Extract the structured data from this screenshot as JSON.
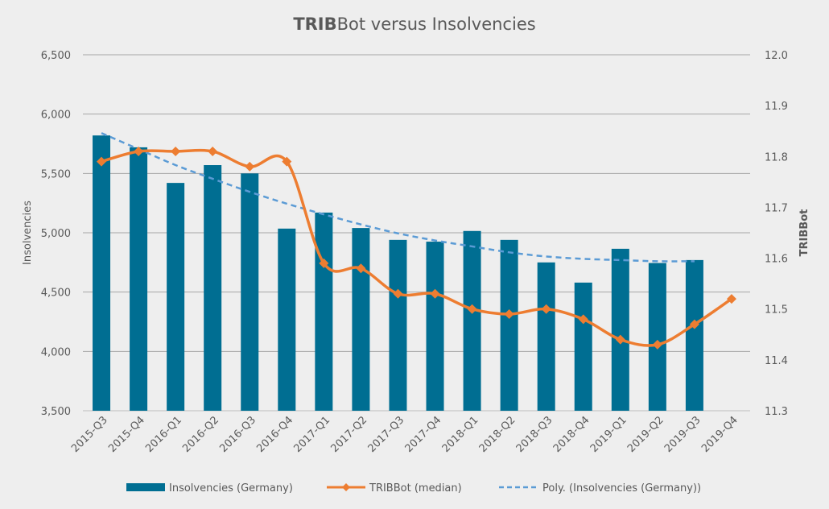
{
  "chart_data": {
    "type": "bar+line",
    "title_bold": "TRIB",
    "title_rest": "Bot versus Insolvencies",
    "ylabel": "Insolvencies",
    "y2label": "TRIBBot",
    "ylim": [
      3500,
      6500
    ],
    "yticks": [
      "3,500",
      "4,000",
      "4,500",
      "5,000",
      "5,500",
      "6,000",
      "6,500"
    ],
    "y2lim": [
      11.3,
      12.0
    ],
    "y2ticks": [
      "11.3",
      "11.4",
      "11.5",
      "11.6",
      "11.7",
      "11.8",
      "11.9",
      "12.0"
    ],
    "grid": true,
    "legend_position": "bottom",
    "categories": [
      "2015-Q3",
      "2015-Q4",
      "2016-Q1",
      "2016-Q2",
      "2016-Q3",
      "2016-Q4",
      "2017-Q1",
      "2017-Q2",
      "2017-Q3",
      "2017-Q4",
      "2018-Q1",
      "2018-Q2",
      "2018-Q3",
      "2018-Q4",
      "2019-Q1",
      "2019-Q2",
      "2019-Q3",
      "2019-Q4"
    ],
    "series": [
      {
        "name": "Insolvencies (Germany)",
        "type": "bar",
        "axis": "left",
        "color": "#006e92",
        "values": [
          5820,
          5720,
          5420,
          5570,
          5500,
          5035,
          5170,
          5040,
          4940,
          4925,
          5015,
          4940,
          4750,
          4580,
          4865,
          4745,
          4770,
          null
        ]
      },
      {
        "name": "TRIBBot (median)",
        "type": "line",
        "axis": "right",
        "color": "#ed7d31",
        "values": [
          11.79,
          11.81,
          11.81,
          11.81,
          11.78,
          11.79,
          11.59,
          11.58,
          11.53,
          11.53,
          11.5,
          11.49,
          11.5,
          11.48,
          11.44,
          11.43,
          11.47,
          11.52
        ]
      },
      {
        "name": "Poly. (Insolvencies (Germany))",
        "type": "trendline",
        "axis": "left",
        "color": "#5b9bd5",
        "values": [
          5840,
          5705,
          5570,
          5455,
          5345,
          5245,
          5155,
          5070,
          4995,
          4935,
          4885,
          4835,
          4800,
          4780,
          4770,
          4760,
          4760,
          null
        ]
      }
    ]
  }
}
